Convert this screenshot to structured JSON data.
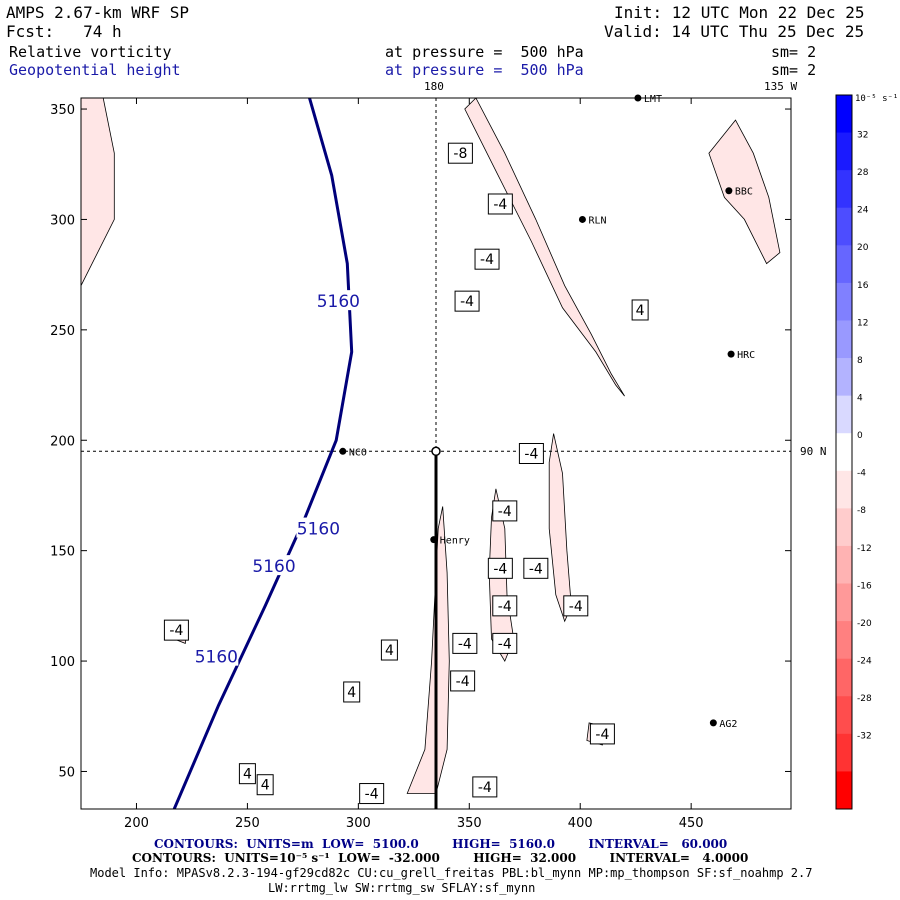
{
  "header": {
    "model": "AMPS 2.67-km WRF SP",
    "init": "Init: 12 UTC Mon 22 Dec 25",
    "forecast": "Fcst:   74 h",
    "valid": "Valid: 14 UTC Thu 25 Dec 25"
  },
  "fields": {
    "field1_name": "Relative vorticity",
    "field1_level": "at pressure =  500 hPa",
    "field1_smooth": "sm= 2",
    "field2_name": "Geopotential height",
    "field2_level": "at pressure =  500 hPa",
    "field2_smooth": "sm= 2"
  },
  "map_labels": {
    "lon_180": "180",
    "lon_135w": "135 W",
    "lat_90n": "90 N"
  },
  "stations": [
    {
      "name": "NCO",
      "x": 293,
      "y": 195
    },
    {
      "name": "Henry",
      "x": 334,
      "y": 155
    },
    {
      "name": "RLN",
      "x": 401,
      "y": 300
    },
    {
      "name": "HRC",
      "x": 468,
      "y": 239
    },
    {
      "name": "BBC",
      "x": 467,
      "y": 313
    },
    {
      "name": "AG2",
      "x": 460,
      "y": 72
    },
    {
      "name": "LMT",
      "x": 426,
      "y": 355
    }
  ],
  "colorbar": {
    "unit": "10⁻⁵ s⁻¹",
    "ticks": [
      "32",
      "28",
      "24",
      "20",
      "16",
      "12",
      "8",
      "4",
      "0",
      "-4",
      "-8",
      "-12",
      "-16",
      "-20",
      "-24",
      "-28",
      "-32"
    ],
    "colors": [
      "#0000ff",
      "#1a1aff",
      "#3333ff",
      "#4d4dff",
      "#6666ff",
      "#8080ff",
      "#9999ff",
      "#b3b3ff",
      "#d9d9ff",
      "#ffffff",
      "#ffe6e6",
      "#ffcccc",
      "#ffb3b3",
      "#ff9999",
      "#ff8080",
      "#ff6666",
      "#ff4d4d",
      "#ff3333",
      "#ff0000"
    ]
  },
  "footer": {
    "contours1": "CONTOURS:  UNITS=m  LOW=  5100.0        HIGH=  5160.0        INTERVAL=   60.000",
    "contours2": "CONTOURS:  UNITS=10⁻⁵ s⁻¹  LOW=  -32.000        HIGH=  32.000        INTERVAL=   4.0000",
    "model_info": "Model Info: MPASv8.2.3-194-gf29cd82c CU:cu_grell_freitas PBL:bl_mynn MP:mp_thompson SF:sf_noahmp 2.7",
    "model_info2": "LW:rrtmg_lw SW:rrtmg_sw SFLAY:sf_mynn"
  },
  "chart_data": {
    "type": "contour",
    "title": "Relative vorticity / Geopotential height at 500 hPa",
    "xlim": [
      175,
      495
    ],
    "ylim": [
      33,
      355
    ],
    "x_ticks": [
      200,
      250,
      300,
      350,
      400,
      450
    ],
    "y_ticks": [
      50,
      100,
      150,
      200,
      250,
      300,
      350
    ],
    "height_contours": [
      {
        "value": 5160,
        "label": "5160",
        "points": [
          [
            217,
            33
          ],
          [
            237,
            80
          ],
          [
            258,
            125
          ],
          [
            276,
            165
          ],
          [
            290,
            200
          ],
          [
            297,
            240
          ],
          [
            295,
            280
          ],
          [
            288,
            320
          ],
          [
            278,
            355
          ]
        ]
      }
    ],
    "height_labels": [
      {
        "text": "5160",
        "x": 291,
        "y": 263
      },
      {
        "text": "5160",
        "x": 282,
        "y": 160
      },
      {
        "text": "5160",
        "x": 262,
        "y": 143
      },
      {
        "text": "5160",
        "x": 236,
        "y": 102
      }
    ],
    "vorticity_regions": [
      {
        "level": -4,
        "points": [
          [
            353,
            355
          ],
          [
            366,
            330
          ],
          [
            380,
            300
          ],
          [
            393,
            270
          ],
          [
            405,
            248
          ],
          [
            414,
            230
          ],
          [
            420,
            220
          ],
          [
            416,
            225
          ],
          [
            407,
            240
          ],
          [
            392,
            260
          ],
          [
            378,
            290
          ],
          [
            363,
            320
          ],
          [
            348,
            350
          ]
        ]
      },
      {
        "level": -4,
        "points": [
          [
            322,
            40
          ],
          [
            330,
            60
          ],
          [
            333,
            100
          ],
          [
            336,
            160
          ],
          [
            338,
            170
          ],
          [
            340,
            140
          ],
          [
            341,
            100
          ],
          [
            340,
            60
          ],
          [
            335,
            40
          ]
        ]
      },
      {
        "level": -4,
        "points": [
          [
            362,
            178
          ],
          [
            366,
            160
          ],
          [
            367,
            130
          ],
          [
            370,
            110
          ],
          [
            366,
            100
          ],
          [
            360,
            110
          ],
          [
            359,
            140
          ],
          [
            360,
            165
          ]
        ]
      },
      {
        "level": -4,
        "points": [
          [
            388,
            203
          ],
          [
            392,
            185
          ],
          [
            394,
            150
          ],
          [
            396,
            125
          ],
          [
            393,
            118
          ],
          [
            389,
            130
          ],
          [
            386,
            160
          ],
          [
            386,
            190
          ]
        ]
      },
      {
        "level": -4,
        "points": [
          [
            185,
            355
          ],
          [
            190,
            330
          ],
          [
            190,
            300
          ],
          [
            180,
            280
          ],
          [
            175,
            270
          ],
          [
            175,
            355
          ]
        ]
      },
      {
        "level": -4,
        "points": [
          [
            218,
            118
          ],
          [
            223,
            116
          ],
          [
            222,
            108
          ],
          [
            217,
            110
          ]
        ]
      },
      {
        "level": -4,
        "points": [
          [
            404,
            72
          ],
          [
            412,
            70
          ],
          [
            410,
            62
          ],
          [
            403,
            64
          ]
        ]
      },
      {
        "level": -4,
        "points": [
          [
            458,
            330
          ],
          [
            470,
            345
          ],
          [
            478,
            330
          ],
          [
            485,
            310
          ],
          [
            490,
            285
          ],
          [
            484,
            280
          ],
          [
            474,
            300
          ],
          [
            465,
            310
          ]
        ]
      }
    ],
    "vorticity_labels": [
      {
        "text": "-8",
        "x": 346,
        "y": 330
      },
      {
        "text": "-4",
        "x": 364,
        "y": 307
      },
      {
        "text": "-4",
        "x": 358,
        "y": 282
      },
      {
        "text": "-4",
        "x": 349,
        "y": 263
      },
      {
        "text": "4",
        "x": 427,
        "y": 259
      },
      {
        "text": "-4",
        "x": 378,
        "y": 194
      },
      {
        "text": "-4",
        "x": 366,
        "y": 168
      },
      {
        "text": "-4",
        "x": 364,
        "y": 142
      },
      {
        "text": "-4",
        "x": 366,
        "y": 125
      },
      {
        "text": "-4",
        "x": 380,
        "y": 142
      },
      {
        "text": "-4",
        "x": 398,
        "y": 125
      },
      {
        "text": "-4",
        "x": 348,
        "y": 108
      },
      {
        "text": "4",
        "x": 314,
        "y": 105
      },
      {
        "text": "-4",
        "x": 366,
        "y": 108
      },
      {
        "text": "-4",
        "x": 347,
        "y": 91
      },
      {
        "text": "4",
        "x": 297,
        "y": 86
      },
      {
        "text": "-4",
        "x": 410,
        "y": 67
      },
      {
        "text": "4",
        "x": 250,
        "y": 49
      },
      {
        "text": "4",
        "x": 258,
        "y": 44
      },
      {
        "text": "-4",
        "x": 306,
        "y": 40
      },
      {
        "text": "-4",
        "x": 357,
        "y": 43
      },
      {
        "text": "-4",
        "x": 218,
        "y": 114
      }
    ],
    "crosshair": {
      "x": 335,
      "y": 195
    },
    "cross_section": {
      "x": 335,
      "y_top": 195,
      "y_bottom": 33
    }
  }
}
